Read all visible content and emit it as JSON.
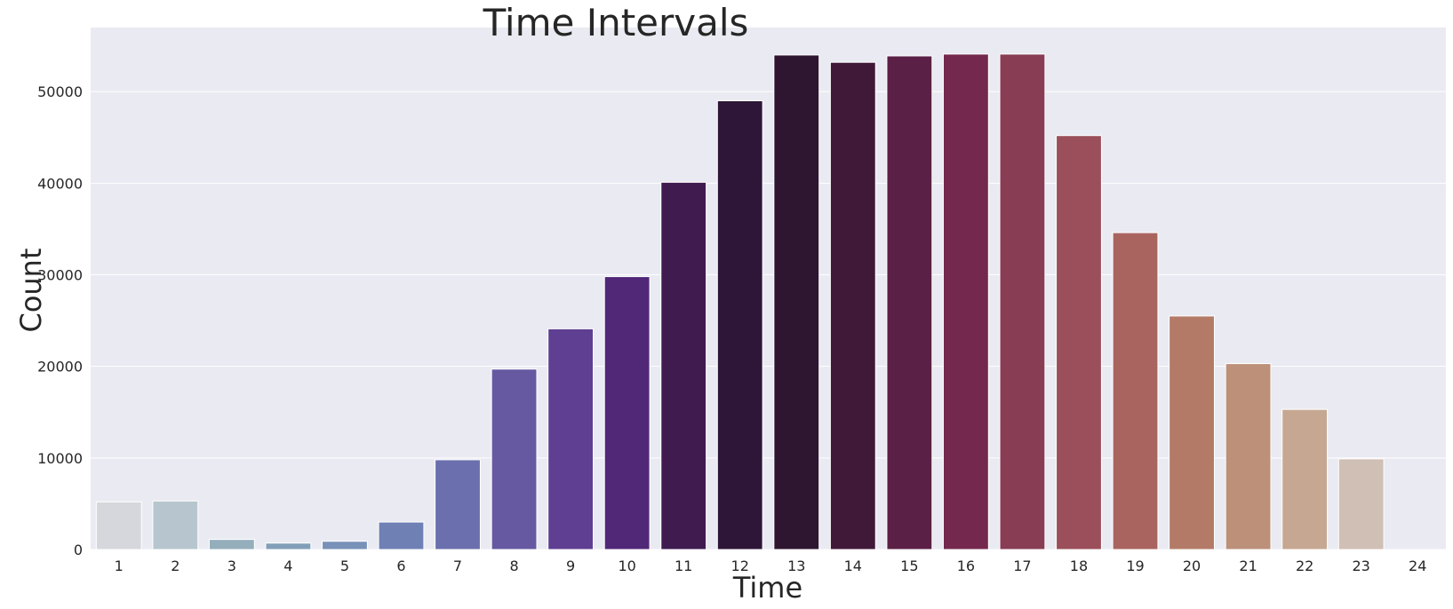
{
  "chart_data": {
    "type": "bar",
    "title": "Time Intervals",
    "xlabel": "Time",
    "ylabel": "Count",
    "categories": [
      "1",
      "2",
      "3",
      "4",
      "5",
      "6",
      "7",
      "8",
      "9",
      "10",
      "11",
      "12",
      "13",
      "14",
      "15",
      "16",
      "17",
      "18",
      "19",
      "20",
      "21",
      "22",
      "23",
      "24"
    ],
    "values": [
      5200,
      5300,
      1100,
      700,
      900,
      3000,
      9800,
      19700,
      24100,
      29800,
      40100,
      49000,
      54000,
      53200,
      53900,
      54100,
      54100,
      45200,
      34600,
      25500,
      20300,
      15300,
      9900,
      0
    ],
    "colors": [
      "#d6d7dc",
      "#b7c6ce",
      "#94aebc",
      "#819fb8",
      "#7891b8",
      "#6f80b5",
      "#6b6fad",
      "#6659a1",
      "#5e3f91",
      "#512778",
      "#3f1b50",
      "#2d1638",
      "#2e1631",
      "#401838",
      "#5b2045",
      "#75284d",
      "#883d54",
      "#9a4f5a",
      "#a9645f",
      "#b37b67",
      "#bc9079",
      "#c6a792",
      "#d0bfb4",
      ""
    ],
    "ylim": [
      0,
      57000
    ],
    "yticks": [
      0,
      10000,
      20000,
      30000,
      40000,
      50000
    ],
    "grid": true,
    "background": "#eaeaf2",
    "gridline_color": "#ffffff"
  }
}
